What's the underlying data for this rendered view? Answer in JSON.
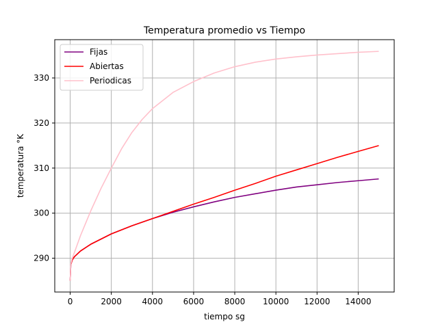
{
  "chart_data": {
    "type": "line",
    "title": "Temperatura promedio vs Tiempo",
    "xlabel": "tiempo sg",
    "ylabel": "temperatura  °K",
    "xlim": [
      -750,
      15750
    ],
    "ylim": [
      282.5,
      338.5
    ],
    "xticks": [
      0,
      2000,
      4000,
      6000,
      8000,
      10000,
      12000,
      14000
    ],
    "yticks": [
      290,
      300,
      310,
      320,
      330
    ],
    "grid": true,
    "legend_position": "top-left",
    "series": [
      {
        "name": "Fijas",
        "color": "#800080",
        "x": [
          0,
          30,
          100,
          200,
          500,
          1000,
          2000,
          3000,
          4000,
          5000,
          6000,
          7000,
          8000,
          9000,
          10000,
          11000,
          12000,
          13000,
          14000,
          15000
        ],
        "y": [
          285.0,
          288.6,
          289.6,
          290.3,
          291.6,
          293.1,
          295.4,
          297.2,
          298.8,
          300.2,
          301.4,
          302.5,
          303.5,
          304.3,
          305.1,
          305.8,
          306.3,
          306.8,
          307.2,
          307.6
        ]
      },
      {
        "name": "Abiertas",
        "color": "#ff0000",
        "x": [
          0,
          30,
          100,
          200,
          500,
          1000,
          2000,
          3000,
          4000,
          5000,
          6000,
          7000,
          8000,
          9000,
          10000,
          11000,
          12000,
          13000,
          14000,
          15000
        ],
        "y": [
          285.0,
          288.6,
          289.6,
          290.3,
          291.6,
          293.1,
          295.4,
          297.2,
          298.8,
          300.4,
          302.0,
          303.5,
          305.1,
          306.6,
          308.2,
          309.6,
          311.0,
          312.4,
          313.7,
          315.0
        ]
      },
      {
        "name": "Periodicas",
        "color": "#ffc0cb",
        "x": [
          0,
          30,
          100,
          200,
          500,
          1000,
          1500,
          2000,
          2500,
          3000,
          3500,
          4000,
          5000,
          6000,
          7000,
          8000,
          9000,
          10000,
          11000,
          12000,
          13000,
          14000,
          15000
        ],
        "y": [
          285.0,
          288.8,
          290.0,
          291.2,
          295.0,
          300.5,
          305.5,
          310.0,
          314.3,
          317.9,
          320.8,
          323.2,
          326.8,
          329.2,
          331.1,
          332.5,
          333.5,
          334.2,
          334.7,
          335.1,
          335.4,
          335.7,
          335.9
        ]
      }
    ]
  }
}
